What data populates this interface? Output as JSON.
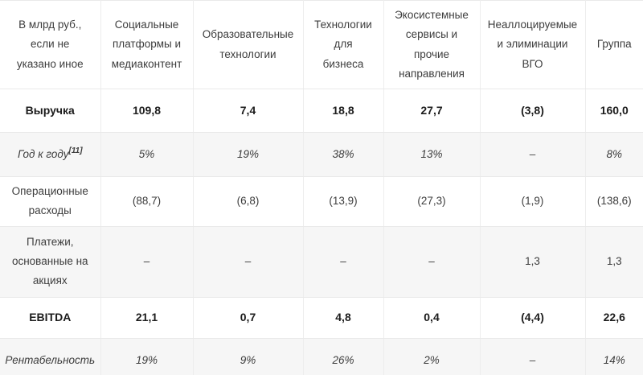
{
  "table": {
    "unit_note": "В млрд руб.,\nесли не\nуказано иное",
    "columns": [
      {
        "key": "social-platforms-media",
        "label": "Социальные\nплатформы и\nмедиаконтент"
      },
      {
        "key": "edtech",
        "label": "Образовательные\nтехнологии"
      },
      {
        "key": "business-tech",
        "label": "Технологии\nдля\nбизнеса"
      },
      {
        "key": "ecosystem-services",
        "label": "Экосистемные\nсервисы и\nпрочие\nнаправления"
      },
      {
        "key": "unallocated-eliminations",
        "label": "Неаллоцируемые\nи элиминации\nВГО"
      },
      {
        "key": "group",
        "label": "Группа"
      }
    ],
    "rows": [
      {
        "key": "revenue",
        "label": "Выручка",
        "footnote": "",
        "style": "bold",
        "values": [
          "109,8",
          "7,4",
          "18,8",
          "27,7",
          "(3,8)",
          "160,0"
        ]
      },
      {
        "key": "yoy-growth",
        "label": "Год к году",
        "footnote": "[11]",
        "style": "italic",
        "values": [
          "5%",
          "19%",
          "38%",
          "13%",
          "–",
          "8%"
        ]
      },
      {
        "key": "operating-expenses",
        "label": "Операционные\nрасходы",
        "footnote": "",
        "style": "regular",
        "values": [
          "(88,7)",
          "(6,8)",
          "(13,9)",
          "(27,3)",
          "(1,9)",
          "(138,6)"
        ]
      },
      {
        "key": "share-based-payments",
        "label": "Платежи,\nоснованные на\nакциях",
        "footnote": "",
        "style": "regular",
        "values": [
          "–",
          "–",
          "–",
          "–",
          "1,3",
          "1,3"
        ]
      },
      {
        "key": "ebitda",
        "label": "EBITDA",
        "footnote": "",
        "style": "bold",
        "values": [
          "21,1",
          "0,7",
          "4,8",
          "0,4",
          "(4,4)",
          "22,6"
        ]
      },
      {
        "key": "margin",
        "label": "Рентабельность",
        "footnote": "",
        "style": "italic",
        "values": [
          "19%",
          "9%",
          "26%",
          "2%",
          "–",
          "14%"
        ]
      }
    ]
  },
  "colors": {
    "background": "#ffffff",
    "alt_row_background": "#f6f6f6",
    "border": "#e9e9e9",
    "text": "#3d3d3d",
    "text_strong": "#1c1c1c"
  }
}
